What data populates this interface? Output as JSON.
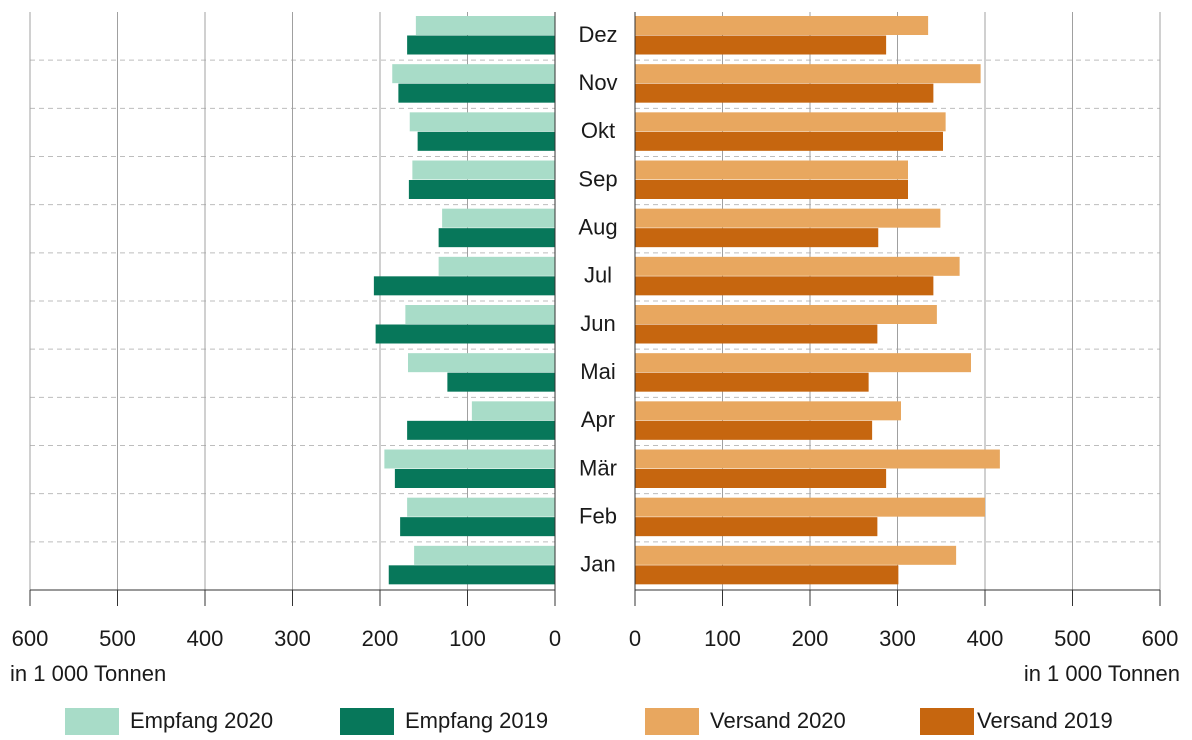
{
  "chart_data": [
    {
      "type": "bar",
      "orientation": "horizontal",
      "x_reversed": true,
      "categories": [
        "Dez",
        "Nov",
        "Okt",
        "Sep",
        "Aug",
        "Jul",
        "Jun",
        "Mai",
        "Apr",
        "Mär",
        "Feb",
        "Jan"
      ],
      "series": [
        {
          "name": "Empfang 2020",
          "color": "#a8dcc8",
          "values": [
            159,
            186,
            166,
            163,
            129,
            133,
            171,
            168,
            95,
            195,
            169,
            161
          ]
        },
        {
          "name": "Empfang 2019",
          "color": "#07775a",
          "values": [
            169,
            179,
            157,
            167,
            133,
            207,
            205,
            123,
            169,
            183,
            177,
            190
          ]
        }
      ],
      "xlabel": "in 1 000 Tonnen",
      "xlim": [
        0,
        600
      ],
      "xticks": [
        0,
        100,
        200,
        300,
        400,
        500,
        600
      ],
      "grid": true
    },
    {
      "type": "bar",
      "orientation": "horizontal",
      "x_reversed": false,
      "series": [
        {
          "name": "Versand 2020",
          "color": "#e8a75f",
          "values": [
            335,
            395,
            355,
            312,
            349,
            371,
            345,
            384,
            304,
            417,
            400,
            367
          ]
        },
        {
          "name": "Versand 2019",
          "color": "#c6660f",
          "values": [
            287,
            341,
            352,
            312,
            278,
            341,
            277,
            267,
            271,
            287,
            277,
            301
          ]
        }
      ],
      "xlabel": "in 1 000 Tonnen",
      "xlim": [
        0,
        600
      ],
      "xticks": [
        0,
        100,
        200,
        300,
        400,
        500,
        600
      ],
      "grid": true
    }
  ]
}
